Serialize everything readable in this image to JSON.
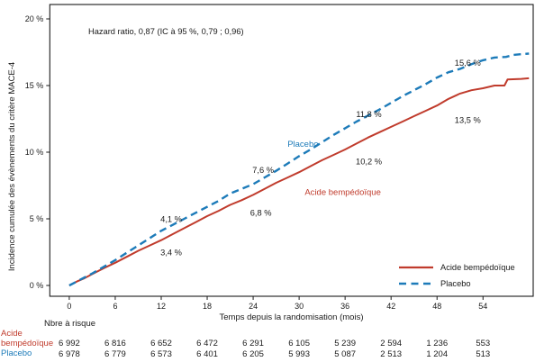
{
  "chart_data": {
    "type": "line",
    "title": "",
    "annotation": "Hazard ratio, 0,87 (IC à 95 %, 0,79 ; 0,96)",
    "xlabel": "Temps depuis la randomisation (mois)",
    "ylabel": "Incidence cumulée des évènements du critère MACE-4",
    "xlim": [
      -2.54,
      60.55
    ],
    "ylim": [
      -0.81,
      21.08
    ],
    "grid": false,
    "x_ticks": [
      0,
      6,
      12,
      18,
      24,
      30,
      36,
      42,
      48,
      54
    ],
    "y_ticks": [
      {
        "value": 0,
        "label": "0 %"
      },
      {
        "value": 5,
        "label": "5 %"
      },
      {
        "value": 10,
        "label": "10 %"
      },
      {
        "value": 15,
        "label": "15 %"
      },
      {
        "value": 20,
        "label": "20 %"
      }
    ],
    "series": [
      {
        "name": "Acide bempédoïque",
        "color": "#c03b2c",
        "style": "solid",
        "points": [
          [
            0,
            0
          ],
          [
            1,
            0.3
          ],
          [
            2,
            0.55
          ],
          [
            3,
            0.85
          ],
          [
            4.5,
            1.3
          ],
          [
            6,
            1.7
          ],
          [
            7.5,
            2.15
          ],
          [
            9,
            2.6
          ],
          [
            10.5,
            3.0
          ],
          [
            12,
            3.4
          ],
          [
            13.5,
            3.85
          ],
          [
            15,
            4.3
          ],
          [
            16.5,
            4.75
          ],
          [
            18,
            5.2
          ],
          [
            19.5,
            5.6
          ],
          [
            21,
            6.05
          ],
          [
            22.5,
            6.4
          ],
          [
            24,
            6.8
          ],
          [
            25.5,
            7.25
          ],
          [
            27,
            7.7
          ],
          [
            28.5,
            8.1
          ],
          [
            30,
            8.5
          ],
          [
            31.5,
            8.95
          ],
          [
            33,
            9.4
          ],
          [
            34.5,
            9.8
          ],
          [
            36,
            10.2
          ],
          [
            37.5,
            10.65
          ],
          [
            39,
            11.1
          ],
          [
            40.5,
            11.5
          ],
          [
            42,
            11.9
          ],
          [
            43.5,
            12.3
          ],
          [
            45,
            12.7
          ],
          [
            46.5,
            13.1
          ],
          [
            48,
            13.5
          ],
          [
            49.5,
            14.0
          ],
          [
            51,
            14.4
          ],
          [
            52.5,
            14.65
          ],
          [
            54,
            14.8
          ],
          [
            55.5,
            15.0
          ],
          [
            56.8,
            15.0
          ],
          [
            57.2,
            15.45
          ],
          [
            59,
            15.5
          ],
          [
            60,
            15.55
          ]
        ]
      },
      {
        "name": "Placebo",
        "color": "#1d7bb9",
        "style": "dashed",
        "points": [
          [
            0,
            0
          ],
          [
            1,
            0.3
          ],
          [
            2,
            0.6
          ],
          [
            3,
            0.9
          ],
          [
            4.5,
            1.4
          ],
          [
            6,
            1.9
          ],
          [
            7.5,
            2.45
          ],
          [
            9,
            3.0
          ],
          [
            10.5,
            3.55
          ],
          [
            12,
            4.1
          ],
          [
            13.5,
            4.55
          ],
          [
            15,
            5.0
          ],
          [
            16.5,
            5.45
          ],
          [
            18,
            5.9
          ],
          [
            19.5,
            6.35
          ],
          [
            21,
            6.9
          ],
          [
            22.5,
            7.25
          ],
          [
            24,
            7.6
          ],
          [
            25.5,
            8.1
          ],
          [
            27,
            8.6
          ],
          [
            28.5,
            9.15
          ],
          [
            30,
            9.7
          ],
          [
            31.5,
            10.2
          ],
          [
            33,
            10.75
          ],
          [
            34.5,
            11.3
          ],
          [
            36,
            11.8
          ],
          [
            37.5,
            12.3
          ],
          [
            39,
            12.75
          ],
          [
            40.5,
            13.2
          ],
          [
            42,
            13.7
          ],
          [
            43.5,
            14.2
          ],
          [
            45,
            14.65
          ],
          [
            46.5,
            15.1
          ],
          [
            48,
            15.6
          ],
          [
            49.5,
            16.0
          ],
          [
            51,
            16.25
          ],
          [
            52.5,
            16.6
          ],
          [
            54,
            16.9
          ],
          [
            55.5,
            17.1
          ],
          [
            57,
            17.15
          ],
          [
            58,
            17.3
          ],
          [
            60,
            17.4
          ]
        ]
      }
    ],
    "point_labels": [
      {
        "text": "3,4 %",
        "month": 13.3,
        "pct": 2.45
      },
      {
        "text": "4,1 %",
        "month": 13.3,
        "pct": 4.95
      },
      {
        "text": "6,8 %",
        "month": 25.0,
        "pct": 5.45
      },
      {
        "text": "7,6 %",
        "month": 25.3,
        "pct": 8.65
      },
      {
        "text": "10,2 %",
        "month": 39.1,
        "pct": 9.3
      },
      {
        "text": "11,8 %",
        "month": 39.1,
        "pct": 12.85
      },
      {
        "text": "13,5 %",
        "month": 52.0,
        "pct": 12.4
      },
      {
        "text": "15,6 %",
        "month": 52.0,
        "pct": 16.7
      }
    ],
    "inline_labels": [
      {
        "text": "Placebo",
        "month": 30.5,
        "pct": 10.6,
        "color": "#1d7bb9"
      },
      {
        "text": "Acide bempédoïque",
        "month": 35.7,
        "pct": 7.0,
        "color": "#c03b2c"
      }
    ],
    "legend": {
      "position": "bottom-right",
      "entries": [
        {
          "label": "Acide bempédoïque",
          "color": "#c03b2c",
          "style": "solid"
        },
        {
          "label": "Placebo",
          "color": "#1d7bb9",
          "style": "dashed"
        }
      ]
    },
    "risk_table": {
      "header": "Nbre à risque",
      "rows": [
        {
          "label": "Acide bempédoïque",
          "color": "#c03b2c",
          "values": [
            "6 992",
            "6 816",
            "6 652",
            "6 472",
            "6 291",
            "6 105",
            "5 239",
            "2 594",
            "1 236",
            "553"
          ]
        },
        {
          "label": "Placebo",
          "color": "#1d7bb9",
          "values": [
            "6 978",
            "6 779",
            "6 573",
            "6 401",
            "6 205",
            "5 993",
            "5 087",
            "2 513",
            "1 204",
            "513"
          ]
        }
      ]
    },
    "colors": {
      "acide": "#c03b2c",
      "placebo": "#1d7bb9",
      "axis": "#1a1a1a"
    }
  }
}
